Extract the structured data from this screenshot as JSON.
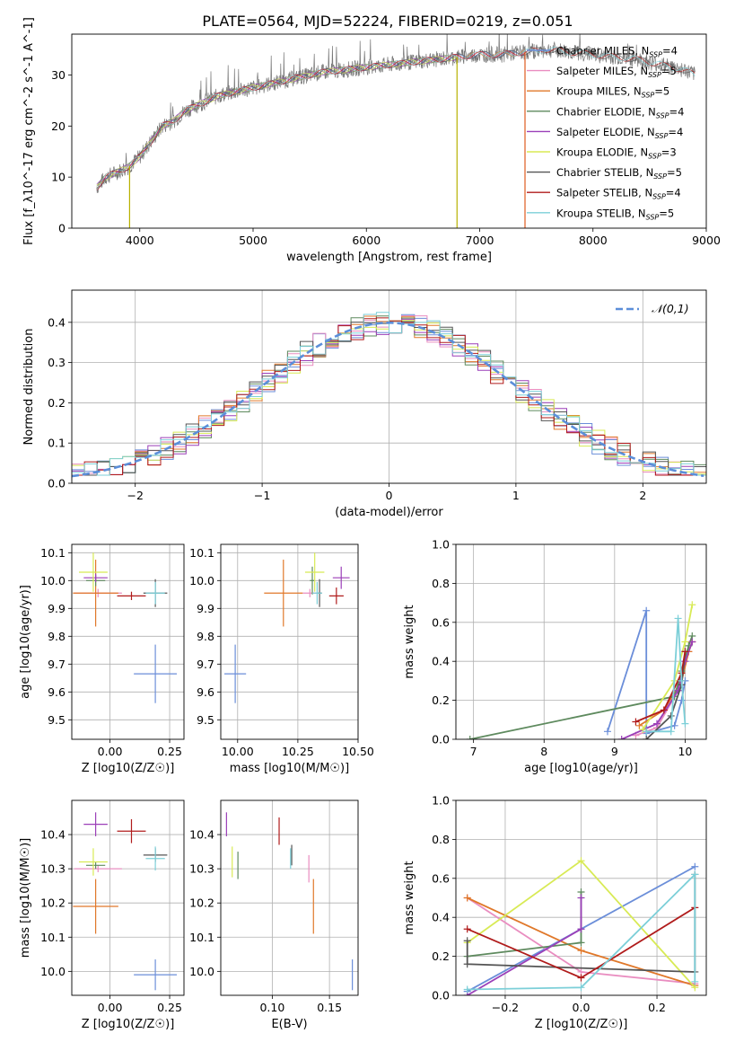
{
  "title": "PLATE=0564, MJD=52224, FIBERID=0219, z=0.051",
  "colors": {
    "Chabrier MILES": "#6b8ed9",
    "Salpeter MILES": "#e98dc0",
    "Kroupa MILES": "#e0782a",
    "Chabrier ELODIE": "#5e8a5e",
    "Salpeter ELODIE": "#9b3fb8",
    "Kroupa ELODIE": "#d8ea55",
    "Chabrier STELIB": "#555555",
    "Salpeter STELIB": "#b01b1b",
    "Kroupa STELIB": "#7ccfd8"
  },
  "chart_data": [
    {
      "id": "spectrum",
      "type": "line",
      "xlabel": "wavelength [Angstrom, rest frame]",
      "ylabel": "Flux [f_λ10^-17 erg cm^-2 s^-1 A^-1]",
      "xlim": [
        3400,
        9000
      ],
      "ylim": [
        0,
        38
      ],
      "xticks": [
        4000,
        5000,
        6000,
        7000,
        8000,
        9000
      ],
      "yticks": [
        0,
        10,
        20,
        30
      ],
      "legend_position": "right",
      "legend": [
        {
          "name": "Chabrier MILES",
          "nssp": "4"
        },
        {
          "name": "Salpeter MILES",
          "nssp": "5"
        },
        {
          "name": "Kroupa MILES",
          "nssp": "5"
        },
        {
          "name": "Chabrier ELODIE",
          "nssp": "4"
        },
        {
          "name": "Salpeter ELODIE",
          "nssp": "4"
        },
        {
          "name": "Kroupa ELODIE",
          "nssp": "3"
        },
        {
          "name": "Chabrier STELIB",
          "nssp": "5"
        },
        {
          "name": "Salpeter STELIB",
          "nssp": "4"
        },
        {
          "name": "Kroupa STELIB",
          "nssp": "5"
        }
      ],
      "continuum": [
        [
          3620,
          8
        ],
        [
          3700,
          10
        ],
        [
          3800,
          11
        ],
        [
          3900,
          12
        ],
        [
          3950,
          13
        ],
        [
          4000,
          14
        ],
        [
          4100,
          17
        ],
        [
          4200,
          20
        ],
        [
          4300,
          21
        ],
        [
          4400,
          23
        ],
        [
          4500,
          24
        ],
        [
          4600,
          25
        ],
        [
          4700,
          26
        ],
        [
          4800,
          26.5
        ],
        [
          4900,
          27
        ],
        [
          5000,
          27.5
        ],
        [
          5100,
          28
        ],
        [
          5200,
          28.5
        ],
        [
          5300,
          29
        ],
        [
          5400,
          29.5
        ],
        [
          5600,
          30.5
        ],
        [
          5800,
          31
        ],
        [
          6000,
          31.5
        ],
        [
          6200,
          32
        ],
        [
          6400,
          32.5
        ],
        [
          6600,
          33
        ],
        [
          6800,
          33.5
        ],
        [
          7000,
          34
        ],
        [
          7200,
          34
        ],
        [
          7400,
          34.5
        ],
        [
          7600,
          35
        ],
        [
          7800,
          34.5
        ],
        [
          8000,
          34
        ],
        [
          8200,
          33.5
        ],
        [
          8400,
          33
        ],
        [
          8600,
          32
        ],
        [
          8800,
          31
        ],
        [
          8900,
          30
        ]
      ],
      "model_ranges": [
        {
          "series": "Chabrier MILES",
          "max_wavelength": 7400
        },
        {
          "series": "Salpeter MILES",
          "max_wavelength": 7400
        },
        {
          "series": "Kroupa MILES",
          "max_wavelength": 7400
        },
        {
          "series": "Chabrier ELODIE",
          "max_wavelength": 6800
        },
        {
          "series": "Salpeter ELODIE",
          "max_wavelength": 6800
        },
        {
          "series": "Kroupa ELODIE",
          "max_wavelength": 6800
        },
        {
          "series": "Chabrier STELIB",
          "max_wavelength": 8900
        },
        {
          "series": "Salpeter STELIB",
          "max_wavelength": 8900
        },
        {
          "series": "Kroupa STELIB",
          "max_wavelength": 8900
        }
      ]
    },
    {
      "id": "residuals",
      "type": "histogram",
      "xlabel": "(data-model)/error",
      "ylabel": "Normed distribution",
      "xlim": [
        -2.5,
        2.5
      ],
      "ylim": [
        0,
        0.48
      ],
      "xticks": [
        -2,
        -1,
        0,
        1,
        2
      ],
      "yticks": [
        0.0,
        0.1,
        0.2,
        0.3,
        0.4
      ],
      "reference_curve": {
        "label": "𝒩(0,1)",
        "mean": 0,
        "sigma": 1
      },
      "bin_width": 0.1,
      "bin_start": -2.5,
      "grid": true,
      "series_order": [
        "Chabrier MILES",
        "Salpeter MILES",
        "Kroupa MILES",
        "Chabrier ELODIE",
        "Salpeter ELODIE",
        "Kroupa ELODIE",
        "Chabrier STELIB",
        "Salpeter STELIB",
        "Kroupa STELIB"
      ]
    },
    {
      "id": "age_vs_Z",
      "type": "errorbar",
      "xlabel": "Z [log10(Z/Z☉)]",
      "ylabel": "age [log10(age/yr)]",
      "xlim": [
        -0.16,
        0.31
      ],
      "ylim": [
        9.43,
        10.13
      ],
      "xticks": [
        0.0,
        0.25
      ],
      "yticks": [
        9.5,
        9.6,
        9.7,
        9.8,
        9.9,
        10.0,
        10.1
      ],
      "grid": true,
      "points": [
        {
          "series": "Chabrier MILES",
          "x": 0.19,
          "xerr": 0.09,
          "y": 9.665,
          "yerr": 0.105
        },
        {
          "series": "Salpeter MILES",
          "x": -0.05,
          "xerr": 0.1,
          "y": 9.955,
          "yerr": 0.015
        },
        {
          "series": "Kroupa MILES",
          "x": -0.06,
          "xerr": 0.095,
          "y": 9.955,
          "yerr": 0.12
        },
        {
          "series": "Chabrier ELODIE",
          "x": -0.06,
          "xerr": 0.04,
          "y": 10.0,
          "yerr": 0.02
        },
        {
          "series": "Salpeter ELODIE",
          "x": -0.06,
          "xerr": 0.05,
          "y": 10.01,
          "yerr": 0.015
        },
        {
          "series": "Kroupa ELODIE",
          "x": -0.07,
          "xerr": 0.06,
          "y": 10.03,
          "yerr": 0.07
        },
        {
          "series": "Chabrier STELIB",
          "x": 0.19,
          "xerr": 0.05,
          "y": 9.955,
          "yerr": 0.05
        },
        {
          "series": "Salpeter STELIB",
          "x": 0.09,
          "xerr": 0.06,
          "y": 9.945,
          "yerr": 0.015
        },
        {
          "series": "Kroupa STELIB",
          "x": 0.19,
          "xerr": 0.04,
          "y": 9.955,
          "yerr": 0.04
        }
      ]
    },
    {
      "id": "age_vs_mass",
      "type": "errorbar",
      "xlabel": "mass [log10(M/M☉)]",
      "ylabel": "",
      "xlim": [
        9.93,
        10.5
      ],
      "ylim": [
        9.43,
        10.13
      ],
      "xticks": [
        10.0,
        10.25,
        10.5
      ],
      "yticks": [
        9.5,
        9.6,
        9.7,
        9.8,
        9.9,
        10.0,
        10.1
      ],
      "grid": true,
      "points": [
        {
          "series": "Chabrier MILES",
          "x": 9.99,
          "xerr": 0.045,
          "y": 9.665,
          "yerr": 0.105
        },
        {
          "series": "Salpeter MILES",
          "x": 10.3,
          "xerr": 0.03,
          "y": 9.955,
          "yerr": 0.015
        },
        {
          "series": "Kroupa MILES",
          "x": 10.19,
          "xerr": 0.08,
          "y": 9.955,
          "yerr": 0.12
        },
        {
          "series": "Chabrier ELODIE",
          "x": 10.31,
          "xerr": 0.01,
          "y": 10.0,
          "yerr": 0.05
        },
        {
          "series": "Salpeter ELODIE",
          "x": 10.43,
          "xerr": 0.035,
          "y": 10.01,
          "yerr": 0.04
        },
        {
          "series": "Kroupa ELODIE",
          "x": 10.32,
          "xerr": 0.04,
          "y": 10.03,
          "yerr": 0.07
        },
        {
          "series": "Chabrier STELIB",
          "x": 10.34,
          "xerr": 0.01,
          "y": 9.955,
          "yerr": 0.05
        },
        {
          "series": "Salpeter STELIB",
          "x": 10.41,
          "xerr": 0.03,
          "y": 9.945,
          "yerr": 0.03
        },
        {
          "series": "Kroupa STELIB",
          "x": 10.33,
          "xerr": 0.02,
          "y": 9.955,
          "yerr": 0.04
        }
      ]
    },
    {
      "id": "mass_weight_vs_age",
      "type": "line",
      "xlabel": "age [log10(age/yr)]",
      "ylabel": "mass weight",
      "xlim": [
        6.75,
        10.3
      ],
      "ylim": [
        0.0,
        1.0
      ],
      "xticks": [
        7,
        8,
        9,
        10
      ],
      "yticks": [
        0.0,
        0.2,
        0.4,
        0.6,
        0.8,
        1.0
      ],
      "grid": true,
      "series": [
        {
          "name": "Chabrier MILES",
          "points": [
            [
              8.9,
              0.04
            ],
            [
              9.45,
              0.66
            ],
            [
              9.45,
              0.03
            ],
            [
              9.85,
              0.07
            ],
            [
              9.95,
              0.2
            ],
            [
              10.0,
              0.3
            ]
          ]
        },
        {
          "name": "Salpeter MILES",
          "points": [
            [
              9.3,
              0.02
            ],
            [
              9.6,
              0.06
            ],
            [
              9.9,
              0.25
            ],
            [
              10.05,
              0.45
            ],
            [
              10.1,
              0.5
            ]
          ]
        },
        {
          "name": "Kroupa MILES",
          "points": [
            [
              9.35,
              0.07
            ],
            [
              9.7,
              0.15
            ],
            [
              9.95,
              0.3
            ],
            [
              10.05,
              0.45
            ],
            [
              10.1,
              0.5
            ]
          ]
        },
        {
          "name": "Chabrier ELODIE",
          "points": [
            [
              6.95,
              0.0
            ],
            [
              9.85,
              0.22
            ],
            [
              9.95,
              0.35
            ],
            [
              10.05,
              0.48
            ],
            [
              10.1,
              0.53
            ]
          ]
        },
        {
          "name": "Salpeter ELODIE",
          "points": [
            [
              9.1,
              0.0
            ],
            [
              9.6,
              0.08
            ],
            [
              9.9,
              0.25
            ],
            [
              10.0,
              0.4
            ],
            [
              10.1,
              0.5
            ]
          ]
        },
        {
          "name": "Kroupa ELODIE",
          "points": [
            [
              9.4,
              0.05
            ],
            [
              9.85,
              0.3
            ],
            [
              10.0,
              0.5
            ],
            [
              10.1,
              0.69
            ]
          ]
        },
        {
          "name": "Chabrier STELIB",
          "points": [
            [
              9.45,
              0.0
            ],
            [
              9.8,
              0.12
            ],
            [
              9.95,
              0.28
            ],
            [
              10.0,
              0.45
            ]
          ]
        },
        {
          "name": "Salpeter STELIB",
          "points": [
            [
              9.3,
              0.09
            ],
            [
              9.7,
              0.15
            ],
            [
              9.95,
              0.34
            ],
            [
              10.0,
              0.45
            ]
          ]
        },
        {
          "name": "Kroupa STELIB",
          "points": [
            [
              9.45,
              0.04
            ],
            [
              9.8,
              0.04
            ],
            [
              9.9,
              0.62
            ],
            [
              9.95,
              0.3
            ],
            [
              10.0,
              0.08
            ]
          ]
        }
      ]
    },
    {
      "id": "mass_vs_Z",
      "type": "errorbar",
      "xlabel": "Z [log10(Z/Z☉)]",
      "ylabel": "mass [log10(M/M☉)]",
      "xlim": [
        -0.16,
        0.31
      ],
      "ylim": [
        9.93,
        10.5
      ],
      "xticks": [
        0.0,
        0.25
      ],
      "yticks": [
        10.0,
        10.1,
        10.2,
        10.3,
        10.4
      ],
      "grid": true,
      "points": [
        {
          "series": "Chabrier MILES",
          "x": 0.19,
          "xerr": 0.09,
          "y": 9.99,
          "yerr": 0.045
        },
        {
          "series": "Salpeter MILES",
          "x": -0.05,
          "xerr": 0.1,
          "y": 10.3,
          "yerr": 0.01
        },
        {
          "series": "Kroupa MILES",
          "x": -0.06,
          "xerr": 0.095,
          "y": 10.19,
          "yerr": 0.08
        },
        {
          "series": "Chabrier ELODIE",
          "x": -0.06,
          "xerr": 0.04,
          "y": 10.31,
          "yerr": 0.01
        },
        {
          "series": "Salpeter ELODIE",
          "x": -0.06,
          "xerr": 0.05,
          "y": 10.43,
          "yerr": 0.035
        },
        {
          "series": "Kroupa ELODIE",
          "x": -0.07,
          "xerr": 0.06,
          "y": 10.32,
          "yerr": 0.04
        },
        {
          "series": "Chabrier STELIB",
          "x": 0.19,
          "xerr": 0.05,
          "y": 10.34,
          "yerr": 0.02
        },
        {
          "series": "Salpeter STELIB",
          "x": 0.09,
          "xerr": 0.06,
          "y": 10.41,
          "yerr": 0.035
        },
        {
          "series": "Kroupa STELIB",
          "x": 0.19,
          "xerr": 0.04,
          "y": 10.33,
          "yerr": 0.035
        }
      ]
    },
    {
      "id": "mass_vs_ebv",
      "type": "errorbar",
      "xlabel": "E(B-V)",
      "ylabel": "",
      "xlim": [
        0.055,
        0.175
      ],
      "ylim": [
        9.93,
        10.5
      ],
      "xticks": [
        0.1,
        0.15
      ],
      "yticks": [
        10.0,
        10.1,
        10.2,
        10.3,
        10.4
      ],
      "grid": true,
      "points": [
        {
          "series": "Chabrier MILES",
          "x": 0.17,
          "y": 9.99,
          "yerr": 0.045
        },
        {
          "series": "Salpeter MILES",
          "x": 0.132,
          "y": 10.3,
          "yerr": 0.04
        },
        {
          "series": "Kroupa MILES",
          "x": 0.136,
          "y": 10.19,
          "yerr": 0.08
        },
        {
          "series": "Chabrier ELODIE",
          "x": 0.07,
          "y": 10.31,
          "yerr": 0.04
        },
        {
          "series": "Salpeter ELODIE",
          "x": 0.06,
          "y": 10.43,
          "yerr": 0.035
        },
        {
          "series": "Kroupa ELODIE",
          "x": 0.065,
          "y": 10.32,
          "yerr": 0.045
        },
        {
          "series": "Chabrier STELIB",
          "x": 0.117,
          "y": 10.34,
          "yerr": 0.03
        },
        {
          "series": "Salpeter STELIB",
          "x": 0.106,
          "y": 10.41,
          "yerr": 0.04
        },
        {
          "series": "Kroupa STELIB",
          "x": 0.116,
          "y": 10.33,
          "yerr": 0.03
        }
      ]
    },
    {
      "id": "mass_weight_vs_Z",
      "type": "line",
      "xlabel": "Z [log10(Z/Z☉)]",
      "ylabel": "mass weight",
      "xlim": [
        -0.33,
        0.33
      ],
      "ylim": [
        0.0,
        1.0
      ],
      "xticks": [
        -0.2,
        0.0,
        0.2
      ],
      "yticks": [
        0.0,
        0.2,
        0.4,
        0.6,
        0.8,
        1.0
      ],
      "grid": true,
      "series": [
        {
          "name": "Chabrier MILES",
          "points": [
            [
              -0.3,
              0.02
            ],
            [
              0.0,
              0.34
            ],
            [
              0.3,
              0.66
            ]
          ]
        },
        {
          "name": "Salpeter MILES",
          "points": [
            [
              -0.3,
              0.5
            ],
            [
              0.0,
              0.12
            ],
            [
              0.3,
              0.06
            ]
          ]
        },
        {
          "name": "Kroupa MILES",
          "points": [
            [
              -0.3,
              0.5
            ],
            [
              0.0,
              0.23
            ],
            [
              0.3,
              0.05
            ]
          ]
        },
        {
          "name": "Chabrier ELODIE",
          "points": [
            [
              -0.3,
              0.2
            ],
            [
              0.0,
              0.27
            ],
            [
              0.0,
              0.53
            ]
          ]
        },
        {
          "name": "Salpeter ELODIE",
          "points": [
            [
              -0.3,
              0.0
            ],
            [
              0.0,
              0.34
            ],
            [
              0.0,
              0.5
            ]
          ]
        },
        {
          "name": "Kroupa ELODIE",
          "points": [
            [
              -0.3,
              0.27
            ],
            [
              0.0,
              0.69
            ],
            [
              0.3,
              0.04
            ]
          ]
        },
        {
          "name": "Chabrier STELIB",
          "points": [
            [
              -0.3,
              0.28
            ],
            [
              -0.3,
              0.16
            ],
            [
              0.3,
              0.12
            ],
            [
              0.3,
              0.62
            ]
          ]
        },
        {
          "name": "Salpeter STELIB",
          "points": [
            [
              -0.3,
              0.34
            ],
            [
              0.0,
              0.09
            ],
            [
              0.3,
              0.45
            ]
          ]
        },
        {
          "name": "Kroupa STELIB",
          "points": [
            [
              -0.3,
              0.03
            ],
            [
              0.0,
              0.04
            ],
            [
              0.3,
              0.62
            ],
            [
              0.3,
              0.07
            ]
          ]
        }
      ]
    }
  ]
}
